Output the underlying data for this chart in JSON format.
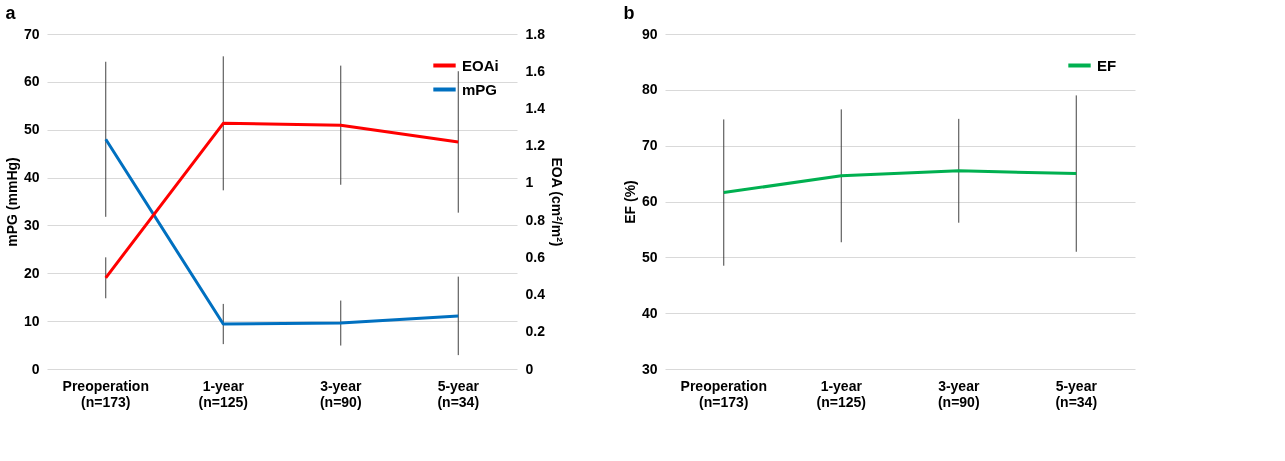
{
  "chart_data": [
    {
      "type": "line",
      "title": "a",
      "categories": [
        "Preoperation\n(n=173)",
        "1-year\n(n=125)",
        "3-year\n(n=90)",
        "5-year\n(n=34)"
      ],
      "ylabel": "mPG (mmHg)",
      "y2label": "EOA (cm²/m²)",
      "ylim": [
        0,
        70
      ],
      "yticks": [
        0,
        10,
        20,
        30,
        40,
        50,
        60,
        70
      ],
      "y2lim": [
        0,
        1.8
      ],
      "y2ticks": [
        0,
        0.2,
        0.4,
        0.6,
        0.8,
        1,
        1.2,
        1.4,
        1.6,
        1.8
      ],
      "grid": "y",
      "legend": "top right",
      "series": [
        {
          "name": "EOAi",
          "color": "#ff0000",
          "axis": "y2",
          "values": [
            0.49,
            1.32,
            1.31,
            1.22
          ],
          "errors": [
            0.11,
            0.36,
            0.32,
            0.38
          ]
        },
        {
          "name": "mPG",
          "color": "#0070c0",
          "values": [
            48,
            9.4,
            9.6,
            11.1
          ],
          "errors": [
            16.2,
            4.2,
            4.7,
            8.2
          ]
        }
      ]
    },
    {
      "type": "line",
      "title": "b",
      "categories": [
        "Preoperation\n(n=173)",
        "1-year\n(n=125)",
        "3-year\n(n=90)",
        "5-year\n(n=34)"
      ],
      "ylabel": "EF (%)",
      "ylim": [
        30,
        90
      ],
      "yticks": [
        30,
        40,
        50,
        60,
        70,
        80,
        90
      ],
      "grid": "y",
      "legend": "top right",
      "series": [
        {
          "name": "EF",
          "color": "#00b050",
          "values": [
            61.6,
            64.6,
            65.5,
            65.0
          ],
          "errors": [
            13.1,
            11.9,
            9.3,
            14.0
          ]
        }
      ]
    }
  ]
}
